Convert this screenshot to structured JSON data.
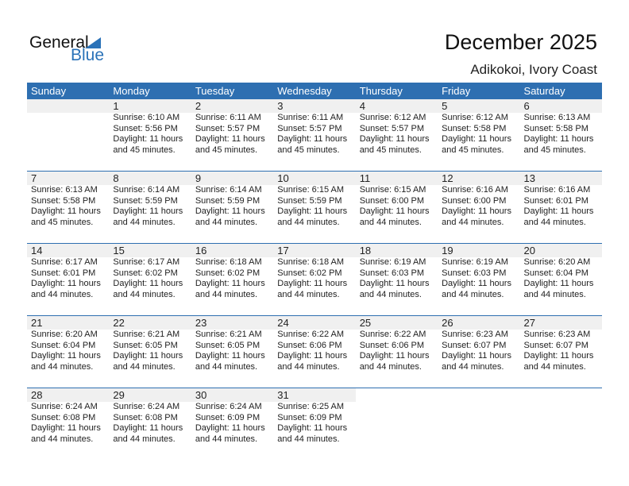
{
  "logo": {
    "general": "General",
    "blue": "Blue"
  },
  "title": "December 2025",
  "location": "Adikokoi, Ivory Coast",
  "colors": {
    "header": "#2e6fb1",
    "band": "#f0f0f0",
    "logo_blue": "#2a72b8"
  },
  "weekdays": [
    "Sunday",
    "Monday",
    "Tuesday",
    "Wednesday",
    "Thursday",
    "Friday",
    "Saturday"
  ],
  "weeks": [
    [
      null,
      {
        "day": "1",
        "sunrise": "Sunrise: 6:10 AM",
        "sunset": "Sunset: 5:56 PM",
        "daylight1": "Daylight: 11 hours",
        "daylight2": "and 45 minutes."
      },
      {
        "day": "2",
        "sunrise": "Sunrise: 6:11 AM",
        "sunset": "Sunset: 5:57 PM",
        "daylight1": "Daylight: 11 hours",
        "daylight2": "and 45 minutes."
      },
      {
        "day": "3",
        "sunrise": "Sunrise: 6:11 AM",
        "sunset": "Sunset: 5:57 PM",
        "daylight1": "Daylight: 11 hours",
        "daylight2": "and 45 minutes."
      },
      {
        "day": "4",
        "sunrise": "Sunrise: 6:12 AM",
        "sunset": "Sunset: 5:57 PM",
        "daylight1": "Daylight: 11 hours",
        "daylight2": "and 45 minutes."
      },
      {
        "day": "5",
        "sunrise": "Sunrise: 6:12 AM",
        "sunset": "Sunset: 5:58 PM",
        "daylight1": "Daylight: 11 hours",
        "daylight2": "and 45 minutes."
      },
      {
        "day": "6",
        "sunrise": "Sunrise: 6:13 AM",
        "sunset": "Sunset: 5:58 PM",
        "daylight1": "Daylight: 11 hours",
        "daylight2": "and 45 minutes."
      }
    ],
    [
      {
        "day": "7",
        "sunrise": "Sunrise: 6:13 AM",
        "sunset": "Sunset: 5:58 PM",
        "daylight1": "Daylight: 11 hours",
        "daylight2": "and 45 minutes."
      },
      {
        "day": "8",
        "sunrise": "Sunrise: 6:14 AM",
        "sunset": "Sunset: 5:59 PM",
        "daylight1": "Daylight: 11 hours",
        "daylight2": "and 44 minutes."
      },
      {
        "day": "9",
        "sunrise": "Sunrise: 6:14 AM",
        "sunset": "Sunset: 5:59 PM",
        "daylight1": "Daylight: 11 hours",
        "daylight2": "and 44 minutes."
      },
      {
        "day": "10",
        "sunrise": "Sunrise: 6:15 AM",
        "sunset": "Sunset: 5:59 PM",
        "daylight1": "Daylight: 11 hours",
        "daylight2": "and 44 minutes."
      },
      {
        "day": "11",
        "sunrise": "Sunrise: 6:15 AM",
        "sunset": "Sunset: 6:00 PM",
        "daylight1": "Daylight: 11 hours",
        "daylight2": "and 44 minutes."
      },
      {
        "day": "12",
        "sunrise": "Sunrise: 6:16 AM",
        "sunset": "Sunset: 6:00 PM",
        "daylight1": "Daylight: 11 hours",
        "daylight2": "and 44 minutes."
      },
      {
        "day": "13",
        "sunrise": "Sunrise: 6:16 AM",
        "sunset": "Sunset: 6:01 PM",
        "daylight1": "Daylight: 11 hours",
        "daylight2": "and 44 minutes."
      }
    ],
    [
      {
        "day": "14",
        "sunrise": "Sunrise: 6:17 AM",
        "sunset": "Sunset: 6:01 PM",
        "daylight1": "Daylight: 11 hours",
        "daylight2": "and 44 minutes."
      },
      {
        "day": "15",
        "sunrise": "Sunrise: 6:17 AM",
        "sunset": "Sunset: 6:02 PM",
        "daylight1": "Daylight: 11 hours",
        "daylight2": "and 44 minutes."
      },
      {
        "day": "16",
        "sunrise": "Sunrise: 6:18 AM",
        "sunset": "Sunset: 6:02 PM",
        "daylight1": "Daylight: 11 hours",
        "daylight2": "and 44 minutes."
      },
      {
        "day": "17",
        "sunrise": "Sunrise: 6:18 AM",
        "sunset": "Sunset: 6:02 PM",
        "daylight1": "Daylight: 11 hours",
        "daylight2": "and 44 minutes."
      },
      {
        "day": "18",
        "sunrise": "Sunrise: 6:19 AM",
        "sunset": "Sunset: 6:03 PM",
        "daylight1": "Daylight: 11 hours",
        "daylight2": "and 44 minutes."
      },
      {
        "day": "19",
        "sunrise": "Sunrise: 6:19 AM",
        "sunset": "Sunset: 6:03 PM",
        "daylight1": "Daylight: 11 hours",
        "daylight2": "and 44 minutes."
      },
      {
        "day": "20",
        "sunrise": "Sunrise: 6:20 AM",
        "sunset": "Sunset: 6:04 PM",
        "daylight1": "Daylight: 11 hours",
        "daylight2": "and 44 minutes."
      }
    ],
    [
      {
        "day": "21",
        "sunrise": "Sunrise: 6:20 AM",
        "sunset": "Sunset: 6:04 PM",
        "daylight1": "Daylight: 11 hours",
        "daylight2": "and 44 minutes."
      },
      {
        "day": "22",
        "sunrise": "Sunrise: 6:21 AM",
        "sunset": "Sunset: 6:05 PM",
        "daylight1": "Daylight: 11 hours",
        "daylight2": "and 44 minutes."
      },
      {
        "day": "23",
        "sunrise": "Sunrise: 6:21 AM",
        "sunset": "Sunset: 6:05 PM",
        "daylight1": "Daylight: 11 hours",
        "daylight2": "and 44 minutes."
      },
      {
        "day": "24",
        "sunrise": "Sunrise: 6:22 AM",
        "sunset": "Sunset: 6:06 PM",
        "daylight1": "Daylight: 11 hours",
        "daylight2": "and 44 minutes."
      },
      {
        "day": "25",
        "sunrise": "Sunrise: 6:22 AM",
        "sunset": "Sunset: 6:06 PM",
        "daylight1": "Daylight: 11 hours",
        "daylight2": "and 44 minutes."
      },
      {
        "day": "26",
        "sunrise": "Sunrise: 6:23 AM",
        "sunset": "Sunset: 6:07 PM",
        "daylight1": "Daylight: 11 hours",
        "daylight2": "and 44 minutes."
      },
      {
        "day": "27",
        "sunrise": "Sunrise: 6:23 AM",
        "sunset": "Sunset: 6:07 PM",
        "daylight1": "Daylight: 11 hours",
        "daylight2": "and 44 minutes."
      }
    ],
    [
      {
        "day": "28",
        "sunrise": "Sunrise: 6:24 AM",
        "sunset": "Sunset: 6:08 PM",
        "daylight1": "Daylight: 11 hours",
        "daylight2": "and 44 minutes."
      },
      {
        "day": "29",
        "sunrise": "Sunrise: 6:24 AM",
        "sunset": "Sunset: 6:08 PM",
        "daylight1": "Daylight: 11 hours",
        "daylight2": "and 44 minutes."
      },
      {
        "day": "30",
        "sunrise": "Sunrise: 6:24 AM",
        "sunset": "Sunset: 6:09 PM",
        "daylight1": "Daylight: 11 hours",
        "daylight2": "and 44 minutes."
      },
      {
        "day": "31",
        "sunrise": "Sunrise: 6:25 AM",
        "sunset": "Sunset: 6:09 PM",
        "daylight1": "Daylight: 11 hours",
        "daylight2": "and 44 minutes."
      },
      null,
      null,
      null
    ]
  ]
}
